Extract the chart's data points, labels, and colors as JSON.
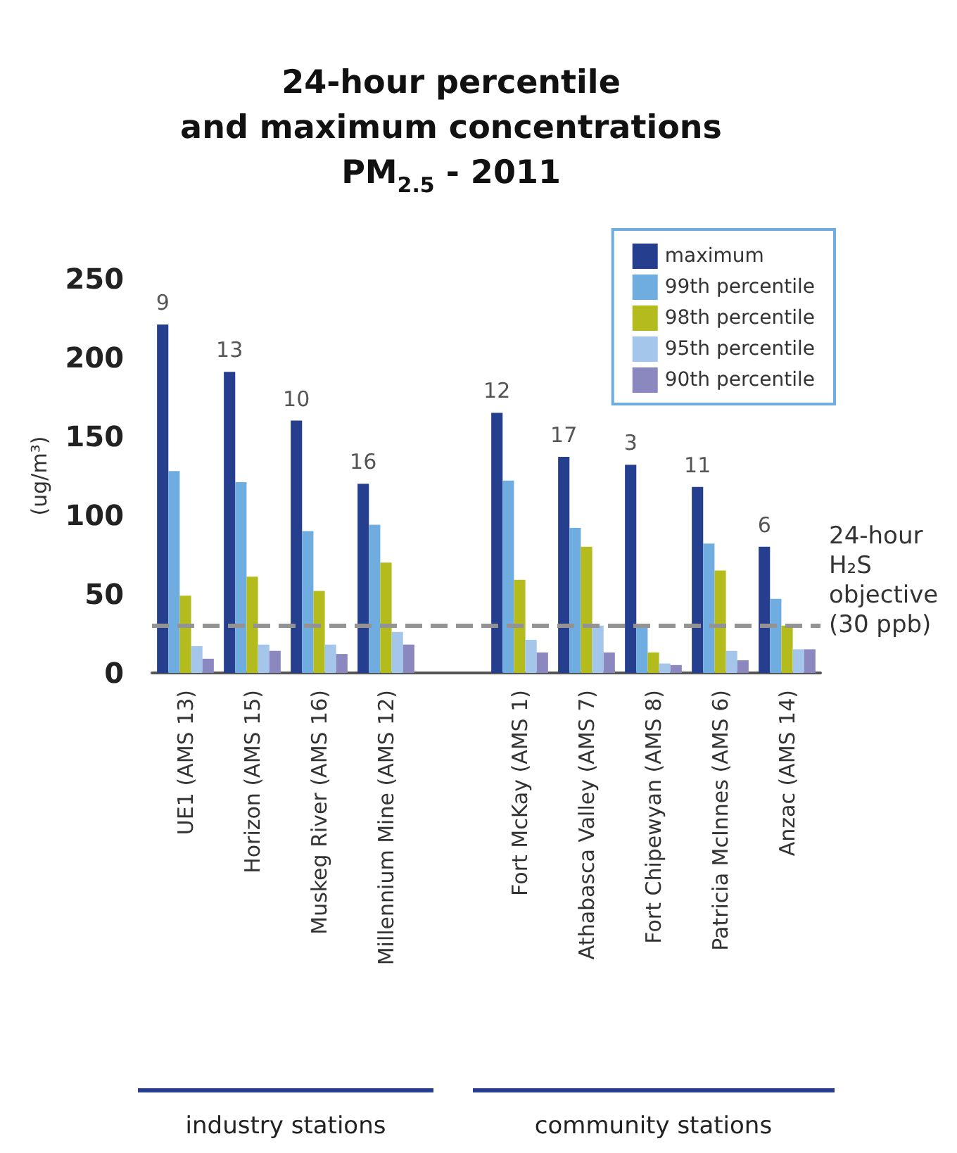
{
  "chart_data": {
    "type": "bar",
    "title": "24-hour percentile\nand maximum concentrations\nPM$_{2.5}$ - 2011",
    "ylabel": "(ug/m³)",
    "categories": [
      "UE1 (AMS 13)",
      "Horizon (AMS 15)",
      "Muskeg River (AMS 16)",
      "Millennium Mine (AMS 12)",
      null,
      "Fort McKay (AMS 1)",
      "Athabasca Valley (AMS 7)",
      "Fort Chipewyan (AMS 8)",
      "Patricia McInnes (AMS 6)",
      "Anzac (AMS 14)"
    ],
    "series": [
      {
        "name": "maximum",
        "color": "#253f8e",
        "values": [
          221,
          191,
          160,
          120,
          null,
          165,
          137,
          132,
          118,
          80
        ]
      },
      {
        "name": "99th percentile",
        "color": "#6fade0",
        "values": [
          128,
          121,
          90,
          94,
          null,
          122,
          92,
          30,
          82,
          47
        ]
      },
      {
        "name": "98th percentile",
        "color": "#b3bb1d",
        "values": [
          49,
          61,
          52,
          70,
          null,
          59,
          80,
          13,
          65,
          30
        ]
      },
      {
        "name": "95th percentile",
        "color": "#a3c6ea",
        "values": [
          17,
          18,
          18,
          26,
          null,
          21,
          30,
          6,
          14,
          15
        ]
      },
      {
        "name": "90th percentile",
        "color": "#8a88be",
        "values": [
          9,
          14,
          12,
          18,
          null,
          13,
          13,
          5,
          8,
          15
        ]
      }
    ],
    "ylim": [
      0,
      250
    ],
    "yticks": [
      0,
      50,
      100,
      150,
      200,
      250
    ],
    "grid": false,
    "legend": "top right",
    "ref_lines": [
      {
        "axis": "y",
        "value": 30,
        "label": "24-hour\nH₂S\nobjective\n(30 ppb)",
        "color": "#939393",
        "line_style": "dashed"
      }
    ],
    "annotations": [
      "9",
      "13",
      "10",
      "16",
      "12",
      "17",
      "3",
      "11",
      "6",
      "industry stations",
      "community stations"
    ]
  }
}
